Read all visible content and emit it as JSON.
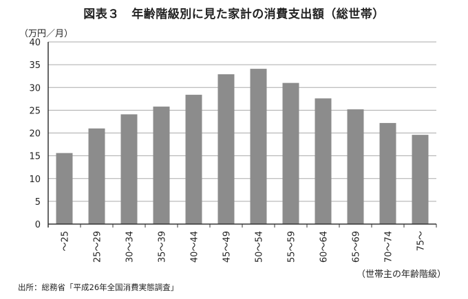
{
  "chart_data": {
    "type": "bar",
    "title": "図表３　年齢階級別に見た家計の消費支出額（総世帯）",
    "ylabel": "（万円／月）",
    "xlabel": "（世帯主の年齢階級）",
    "categories": [
      "～25",
      "25～29",
      "30～34",
      "35～39",
      "40～44",
      "45～49",
      "50～54",
      "55～59",
      "60～64",
      "65～69",
      "70～74",
      "75～"
    ],
    "values": [
      15.6,
      21.0,
      24.1,
      25.8,
      28.4,
      32.9,
      34.1,
      31.0,
      27.6,
      25.2,
      22.2,
      19.6
    ],
    "ylim": [
      0,
      40
    ],
    "yticks": [
      0,
      5,
      10,
      15,
      20,
      25,
      30,
      35,
      40
    ],
    "grid": true,
    "legend": "none",
    "colors": {
      "bar": "#8c8c8c",
      "grid": "#aaaaaa",
      "axis": "#333333"
    },
    "source": "出所：総務省「平成26年全国消費実態調査」"
  }
}
